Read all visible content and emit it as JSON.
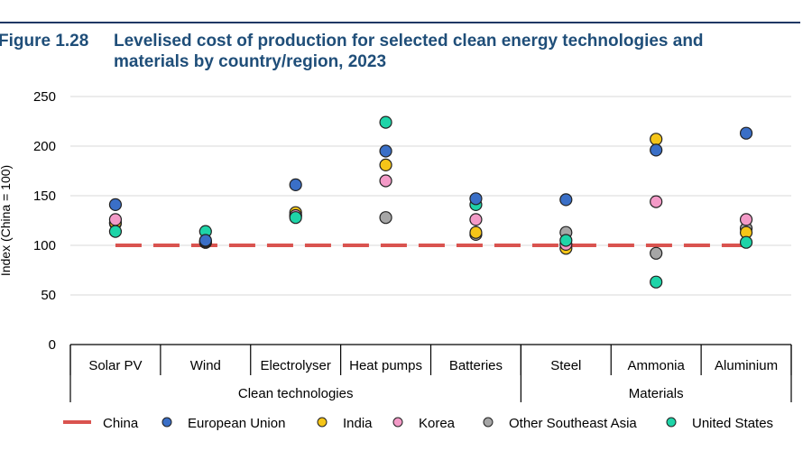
{
  "figure_number": "Figure 1.28",
  "title_line1": "Levelised cost of production for selected clean energy technologies and",
  "title_line2": "materials by country/region, 2023",
  "chart_data": {
    "type": "scatter",
    "ylabel": "Index (China = 100)",
    "ylim": [
      0,
      250
    ],
    "yticks": [
      0,
      50,
      100,
      150,
      200,
      250
    ],
    "grid": true,
    "legend_position": "bottom",
    "categories": [
      "Solar PV",
      "Wind",
      "Electrolyser",
      "Heat pumps",
      "Batteries",
      "Steel",
      "Ammonia",
      "Aluminium"
    ],
    "groups": [
      {
        "label": "Clean technologies",
        "span": 5
      },
      {
        "label": "Materials",
        "span": 3
      }
    ],
    "series": [
      {
        "name": "China",
        "style": "dashed-line",
        "color": "#d9534f",
        "values": [
          100,
          100,
          100,
          100,
          100,
          100,
          100,
          100
        ]
      },
      {
        "name": "European Union",
        "color": "#3a6fc7",
        "values": [
          141,
          105,
          161,
          195,
          147,
          146,
          196,
          213
        ]
      },
      {
        "name": "India",
        "color": "#f5c518",
        "values": [
          123,
          103,
          133,
          181,
          113,
          97,
          207,
          113
        ]
      },
      {
        "name": "Korea",
        "color": "#f39ac7",
        "values": [
          126,
          104,
          130,
          165,
          126,
          101,
          144,
          126
        ]
      },
      {
        "name": "Other Southeast Asia",
        "color": "#a6a6a6",
        "values": [
          122,
          103,
          130,
          128,
          111,
          113,
          92,
          117
        ]
      },
      {
        "name": "United States",
        "color": "#1ed4a8",
        "values": [
          114,
          114,
          128,
          224,
          141,
          105,
          63,
          103
        ]
      }
    ]
  }
}
